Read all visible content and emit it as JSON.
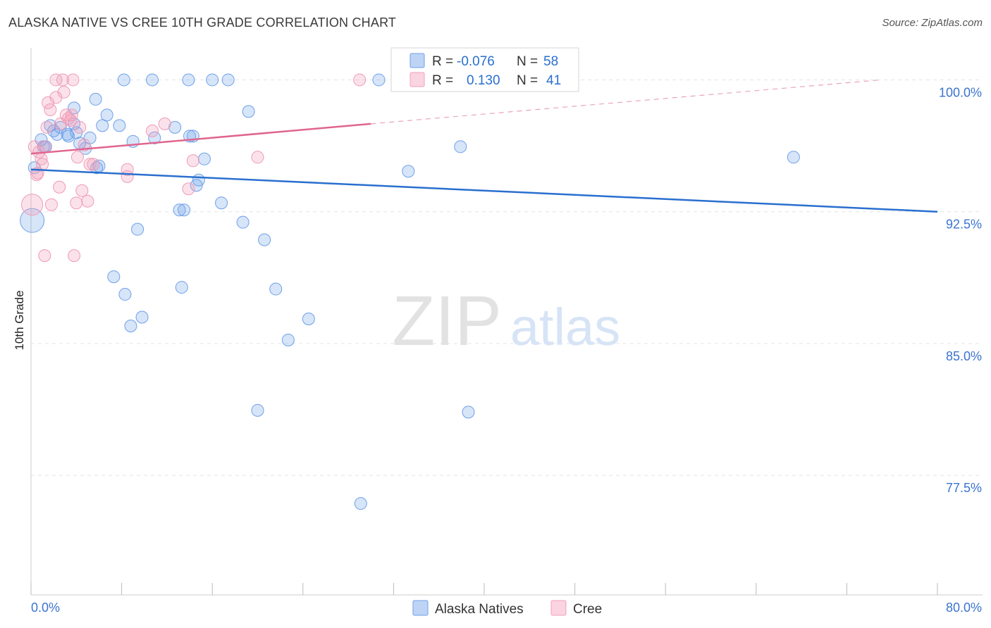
{
  "title": "ALASKA NATIVE VS CREE 10TH GRADE CORRELATION CHART",
  "source": "Source: ZipAtlas.com",
  "watermark": {
    "zip": "ZIP",
    "atlas": "atlas"
  },
  "chart_data": {
    "type": "scatter",
    "ylabel": "10th Grade",
    "xlim": [
      0,
      80
    ],
    "ylim": [
      70.7,
      101.7
    ],
    "x_tick_labels": [
      "0.0%",
      "80.0%"
    ],
    "y_ticks": [
      {
        "value": 100.0,
        "label": "100.0%"
      },
      {
        "value": 92.5,
        "label": "92.5%"
      },
      {
        "value": 85.0,
        "label": "85.0%"
      },
      {
        "value": 77.5,
        "label": "77.5%"
      }
    ],
    "grid": true,
    "legend_position": "top-center",
    "series": [
      {
        "name": "Alaska Natives",
        "color": "#6fa0e8",
        "line_color": "#2a6fcf",
        "R": "-0.076",
        "N": "58",
        "trend": {
          "x": [
            0,
            80
          ],
          "y": [
            94.9,
            92.5
          ]
        },
        "points": [
          [
            0.1,
            92.0
          ],
          [
            0.3,
            95.0
          ],
          [
            0.9,
            96.6
          ],
          [
            1.3,
            96.2
          ],
          [
            1.7,
            97.4
          ],
          [
            2.0,
            97.1
          ],
          [
            2.3,
            96.9
          ],
          [
            2.6,
            97.3
          ],
          [
            3.2,
            96.9
          ],
          [
            3.3,
            96.8
          ],
          [
            3.8,
            98.4
          ],
          [
            3.8,
            97.5
          ],
          [
            4.3,
            96.4
          ],
          [
            4.8,
            96.1
          ],
          [
            5.2,
            96.7
          ],
          [
            5.7,
            98.9
          ],
          [
            5.8,
            95.0
          ],
          [
            6.3,
            97.4
          ],
          [
            6.7,
            98.0
          ],
          [
            7.3,
            88.8
          ],
          [
            7.8,
            97.4
          ],
          [
            8.2,
            100.0
          ],
          [
            8.3,
            87.8
          ],
          [
            8.8,
            86.0
          ],
          [
            9.0,
            96.5
          ],
          [
            9.4,
            91.5
          ],
          [
            9.8,
            86.5
          ],
          [
            10.7,
            100.0
          ],
          [
            10.9,
            96.7
          ],
          [
            12.7,
            97.3
          ],
          [
            13.1,
            92.6
          ],
          [
            13.3,
            88.2
          ],
          [
            13.9,
            100.0
          ],
          [
            14.3,
            96.8
          ],
          [
            14.6,
            94.0
          ],
          [
            14.8,
            94.3
          ],
          [
            15.3,
            95.5
          ],
          [
            16.0,
            100.0
          ],
          [
            16.8,
            93.0
          ],
          [
            17.4,
            100.0
          ],
          [
            18.7,
            91.9
          ],
          [
            19.2,
            98.2
          ],
          [
            20.0,
            81.2
          ],
          [
            20.6,
            90.9
          ],
          [
            21.6,
            88.1
          ],
          [
            22.7,
            85.2
          ],
          [
            24.5,
            86.4
          ],
          [
            29.1,
            75.9
          ],
          [
            30.7,
            100.0
          ],
          [
            33.3,
            94.8
          ],
          [
            37.9,
            96.2
          ],
          [
            38.6,
            81.1
          ],
          [
            67.3,
            95.6
          ],
          [
            1.1,
            96.2
          ],
          [
            4.0,
            97.0
          ],
          [
            6.0,
            95.1
          ],
          [
            14.0,
            96.8
          ],
          [
            13.5,
            92.6
          ]
        ]
      },
      {
        "name": "Cree",
        "color": "#f3a0bb",
        "line_color": "#e0658e",
        "R": "0.130",
        "N": "41",
        "trend": {
          "x": [
            0,
            30
          ],
          "y": [
            95.8,
            97.5
          ]
        },
        "trend_ext": {
          "x": [
            30,
            75
          ],
          "y": [
            97.5,
            100.0
          ]
        },
        "points": [
          [
            0.1,
            92.9
          ],
          [
            0.3,
            96.2
          ],
          [
            0.5,
            94.6
          ],
          [
            0.6,
            94.7
          ],
          [
            0.9,
            95.5
          ],
          [
            1.0,
            95.2
          ],
          [
            1.2,
            96.2
          ],
          [
            1.4,
            97.3
          ],
          [
            1.5,
            98.7
          ],
          [
            1.7,
            98.3
          ],
          [
            1.8,
            92.9
          ],
          [
            2.2,
            99.0
          ],
          [
            2.5,
            93.9
          ],
          [
            2.6,
            97.5
          ],
          [
            2.8,
            100.0
          ],
          [
            2.9,
            99.3
          ],
          [
            3.1,
            98.0
          ],
          [
            3.3,
            97.8
          ],
          [
            3.5,
            97.7
          ],
          [
            3.6,
            98.0
          ],
          [
            3.7,
            100.0
          ],
          [
            3.8,
            90.0
          ],
          [
            4.0,
            93.0
          ],
          [
            4.1,
            95.6
          ],
          [
            4.3,
            97.3
          ],
          [
            4.5,
            93.7
          ],
          [
            4.7,
            96.3
          ],
          [
            5.0,
            93.1
          ],
          [
            5.2,
            95.2
          ],
          [
            5.5,
            95.2
          ],
          [
            8.5,
            94.9
          ],
          [
            8.5,
            94.5
          ],
          [
            10.7,
            97.1
          ],
          [
            11.8,
            97.5
          ],
          [
            13.9,
            93.8
          ],
          [
            14.3,
            95.4
          ],
          [
            20.0,
            95.6
          ],
          [
            29.0,
            100.0
          ],
          [
            1.2,
            90.0
          ],
          [
            2.2,
            100.0
          ],
          [
            0.7,
            95.9
          ]
        ]
      }
    ]
  }
}
